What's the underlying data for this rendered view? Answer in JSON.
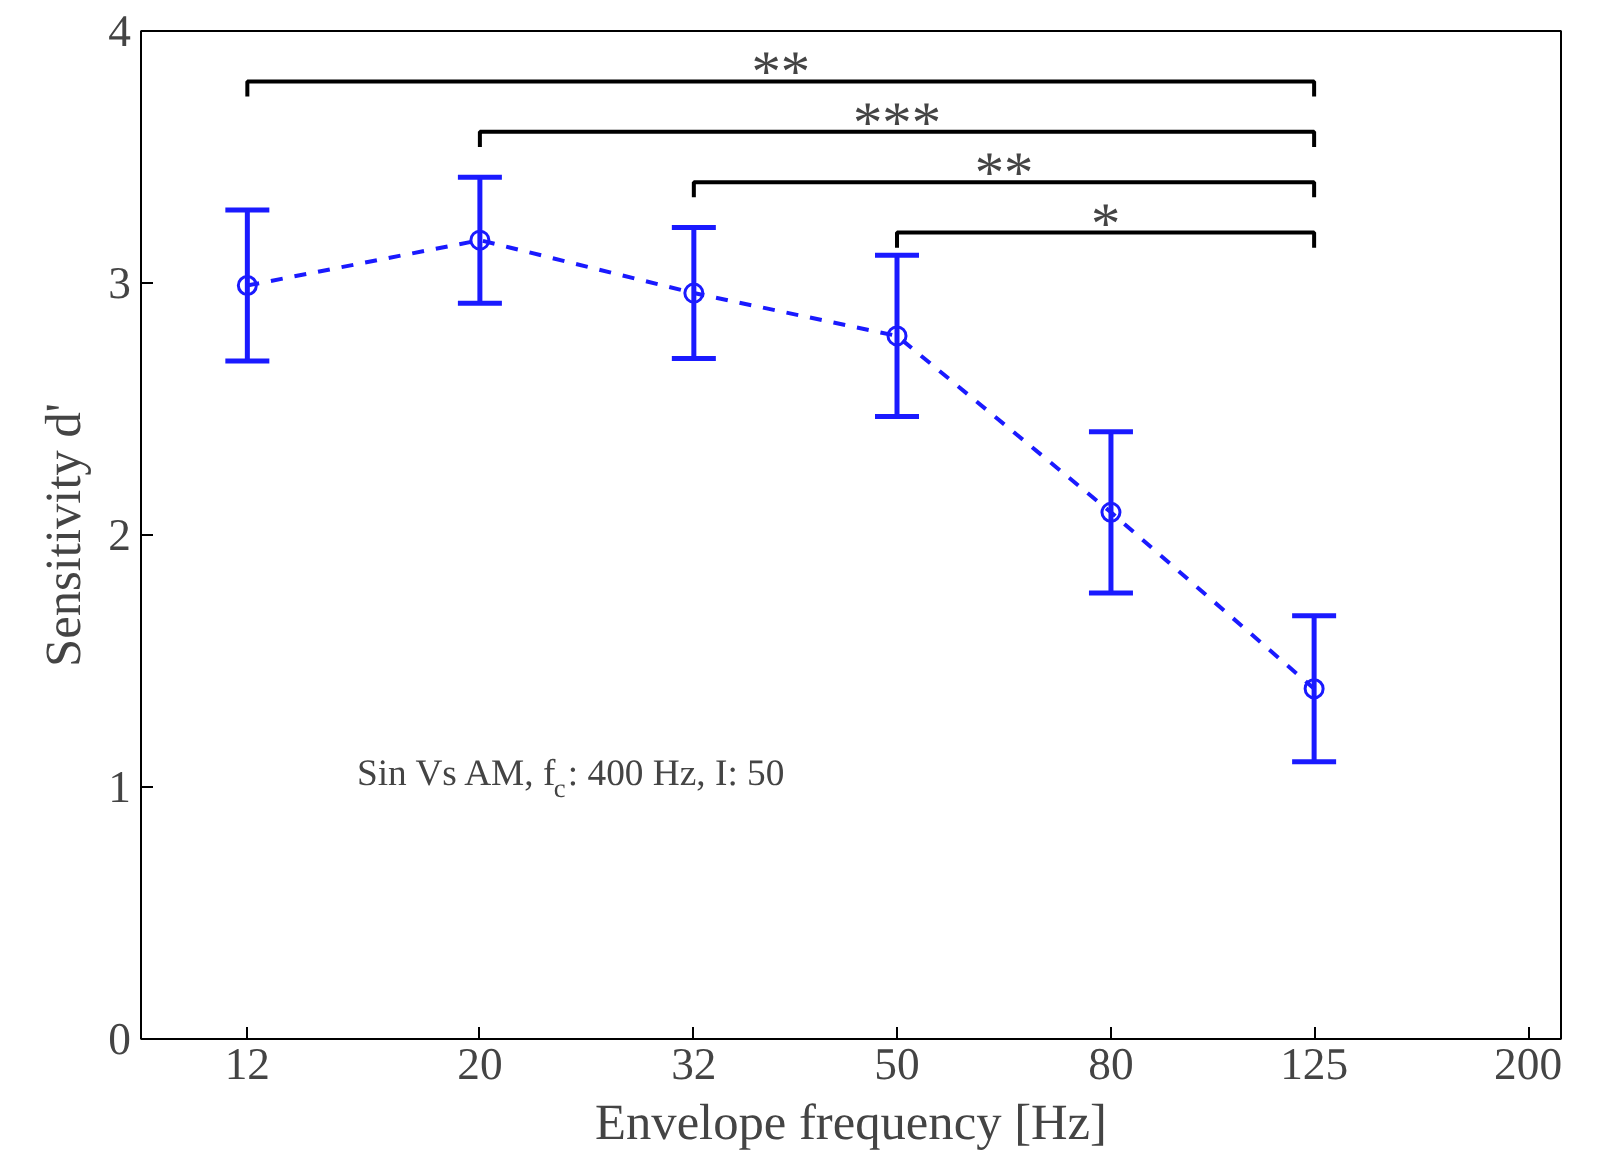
{
  "chart_data": {
    "type": "line",
    "xlabel": "Envelope frequency [Hz]",
    "ylabel": "Sensitivity d'",
    "x": [
      12,
      20,
      32,
      50,
      80,
      125
    ],
    "series": [
      {
        "color": "#1a1aff",
        "values": [
          2.99,
          3.17,
          2.96,
          2.79,
          2.09,
          1.39
        ],
        "errors": [
          0.3,
          0.25,
          0.26,
          0.32,
          0.32,
          0.29
        ]
      }
    ],
    "log": "x",
    "xlim": [
      9.5,
      215
    ],
    "xticks": [
      12,
      20,
      32,
      50,
      80,
      125,
      200
    ],
    "ylim": [
      0,
      4
    ],
    "yticks": [
      0,
      1,
      2,
      3,
      4
    ],
    "grid": false,
    "marker": "circle",
    "line_style": "dashed",
    "annotations": [
      "**",
      "***",
      "**",
      "*",
      "Sin Vs AM, f$_{c}$: 400 Hz, I: 50"
    ]
  }
}
